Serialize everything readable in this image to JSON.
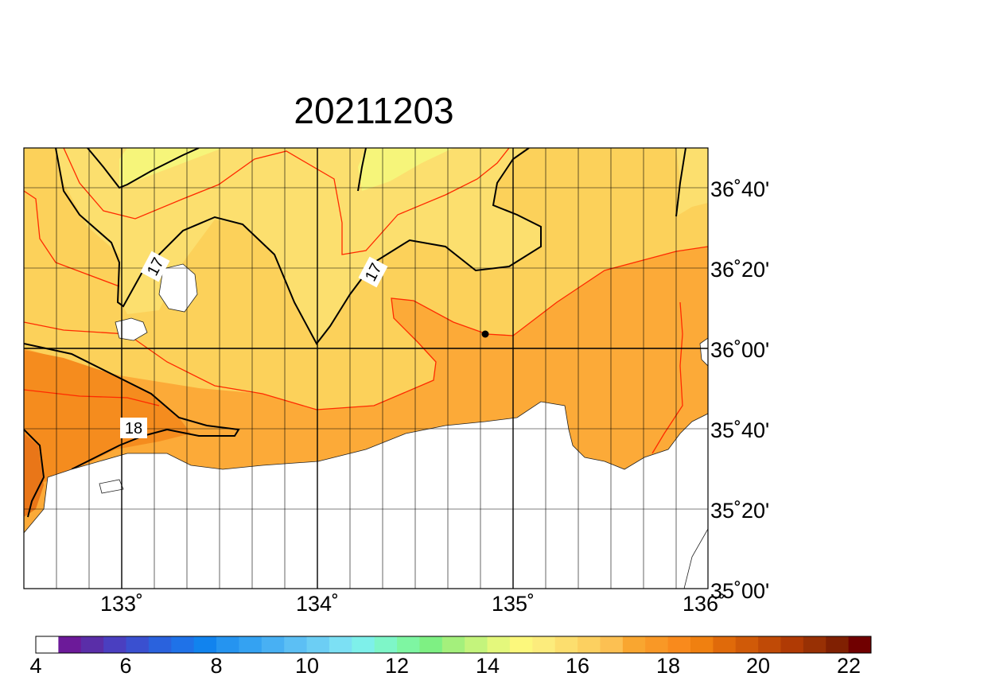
{
  "title": "20211203",
  "map": {
    "lon_labels": [
      "133˚",
      "134˚",
      "135˚",
      "136˚"
    ],
    "lat_labels": [
      "36˚40'",
      "36˚20'",
      "36˚00'",
      "35˚40'",
      "35˚20'",
      "35˚00'"
    ],
    "contour_labels": [
      "17",
      "17",
      "18"
    ]
  },
  "colorbar": {
    "tick_labels": [
      "4",
      "6",
      "8",
      "10",
      "12",
      "14",
      "16",
      "18",
      "20",
      "22"
    ],
    "colors": [
      "#ffffff",
      "#6c1a99",
      "#5a2ea8",
      "#4a3fc0",
      "#3a50d0",
      "#2a62dd",
      "#1f72e8",
      "#1183ee",
      "#2594f0",
      "#34a2f2",
      "#48b0f3",
      "#5cbff4",
      "#6ccef4",
      "#7ce0f4",
      "#7ef0ea",
      "#7ef6c8",
      "#7ef6a2",
      "#7ef083",
      "#a4f07c",
      "#c4f47c",
      "#e4f87c",
      "#fcf87c",
      "#fcec7c",
      "#fcde6e",
      "#fcd060",
      "#fcc052",
      "#f9a630",
      "#f99826",
      "#f98a1c",
      "#f08010",
      "#e06a0a",
      "#d05a08",
      "#c04a06",
      "#b03a04",
      "#983004",
      "#802002",
      "#700000"
    ]
  },
  "legend_colors": {
    "yellow_light": "#f6f57a",
    "yellow": "#fcdf6e",
    "orange_light": "#fcd15a",
    "orange": "#fcaa38",
    "orange_dark": "#f58c1e",
    "land": "#ffffff",
    "contour_red": "#ff2a00",
    "contour_black": "#000000"
  }
}
